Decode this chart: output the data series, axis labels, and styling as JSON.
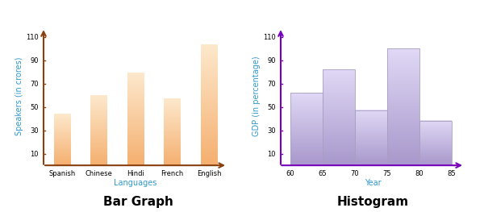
{
  "bar_graph": {
    "categories": [
      "Spanish",
      "Chinese",
      "Hindi",
      "French",
      "English"
    ],
    "values": [
      44,
      60,
      79,
      57,
      103
    ],
    "bar_color_light": "#FDE8CC",
    "bar_color_dark": "#F5B070",
    "xlabel": "Languages",
    "ylabel": "Speakers (in crores)",
    "title": "Bar Graph",
    "yticks": [
      10,
      30,
      50,
      70,
      90,
      110
    ],
    "ymax": 118,
    "axis_color": "#8B4010",
    "label_color": "#3399CC",
    "title_color": "#000000",
    "title_fontsize": 11,
    "label_fontsize": 7,
    "tick_fontsize": 6,
    "bar_width": 0.45
  },
  "histogram": {
    "bin_edges": [
      60,
      65,
      70,
      75,
      80,
      85
    ],
    "values": [
      62,
      82,
      47,
      100,
      38
    ],
    "bar_color_light": "#E0D8F5",
    "bar_color_dark": "#A898CC",
    "xlabel": "Year",
    "ylabel": "GDP (in percentage)",
    "title": "Histogram",
    "yticks": [
      10,
      30,
      50,
      70,
      90,
      110
    ],
    "xticks": [
      60,
      65,
      70,
      75,
      80,
      85
    ],
    "ymax": 118,
    "axis_color": "#7700BB",
    "label_color": "#3399CC",
    "title_color": "#000000",
    "title_fontsize": 11,
    "label_fontsize": 7,
    "tick_fontsize": 6
  }
}
